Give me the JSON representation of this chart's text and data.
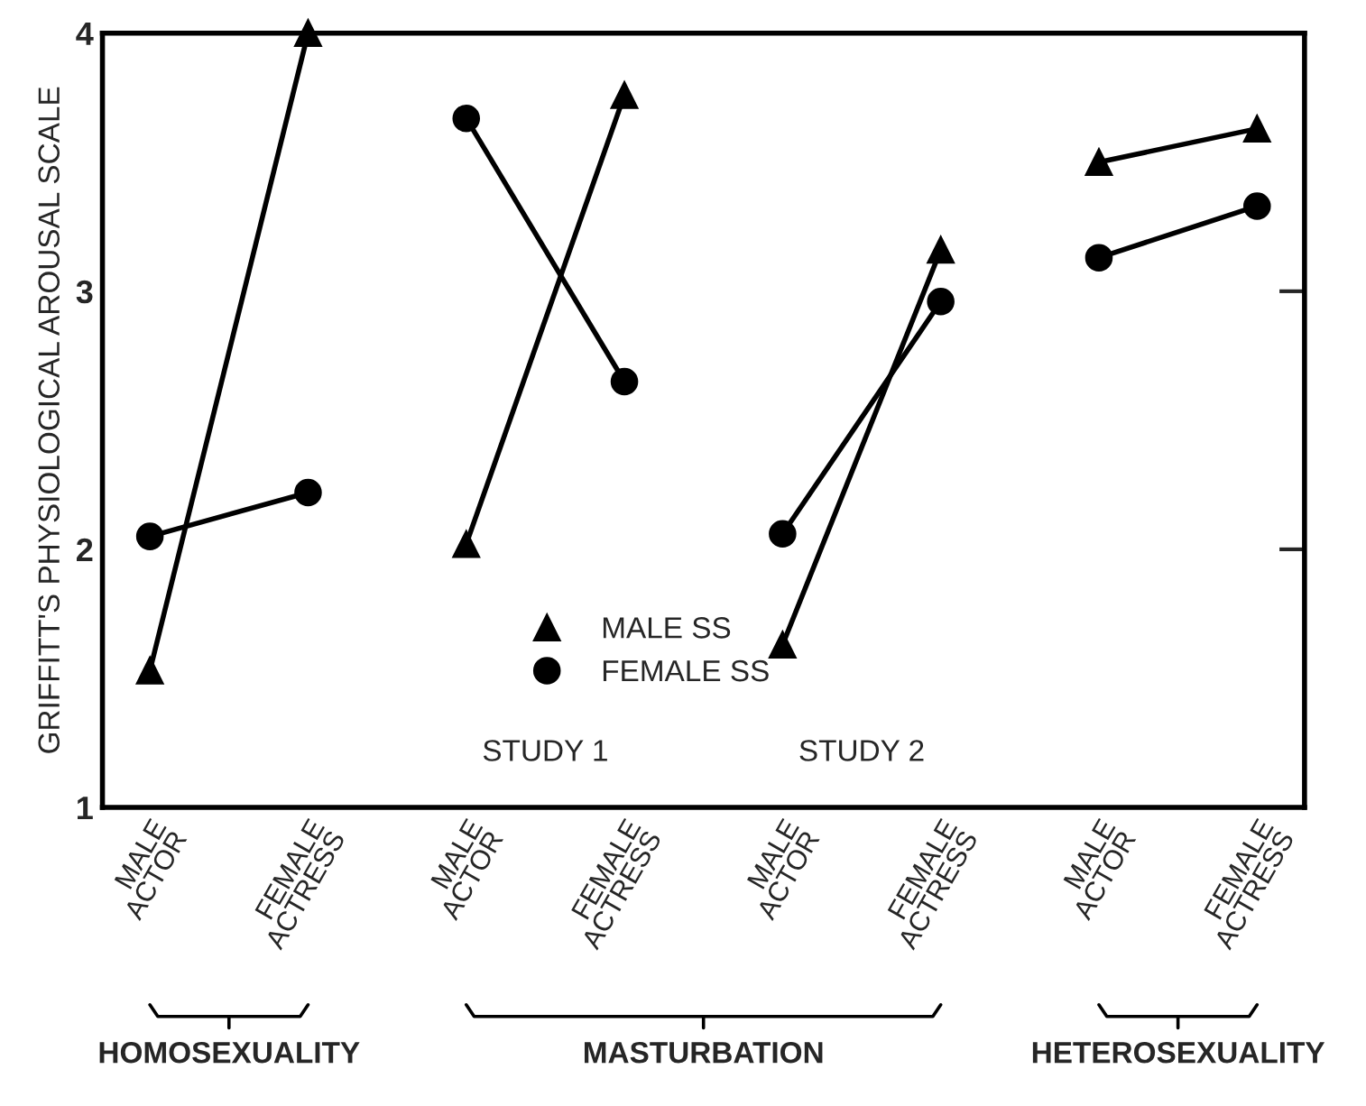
{
  "chart_data": {
    "type": "line",
    "ylabel": "GRIFFITT'S PHYSIOLOGICAL AROUSAL SCALE",
    "categories": [
      "MALE\nACTOR",
      "FEMALE\nACTRESS",
      "MALE\nACTOR",
      "FEMALE\nACTRESS",
      "MALE\nACTOR",
      "FEMALE\nACTRESS",
      "MALE\nACTOR",
      "FEMALE\nACTRESS"
    ],
    "ylim": [
      1,
      4
    ],
    "yticks": [
      1,
      2,
      3,
      4
    ],
    "grid": false,
    "legend": "bottom",
    "line_style": "solid",
    "series": [
      {
        "name": "MALE SS",
        "color": "#000000",
        "marker": "triangle",
        "values": [
          1.53,
          4.0,
          null,
          null,
          null,
          null,
          null,
          null
        ]
      },
      {
        "name": "FEMALE SS",
        "color": "#000000",
        "marker": "circle",
        "values": [
          2.05,
          2.22,
          null,
          null,
          null,
          null,
          null,
          null
        ]
      },
      {
        "color": "#000000",
        "marker": "triangle",
        "values": [
          null,
          null,
          2.02,
          3.76,
          null,
          null,
          null,
          null
        ]
      },
      {
        "color": "#000000",
        "marker": "circle",
        "values": [
          null,
          null,
          3.67,
          2.65,
          null,
          null,
          null,
          null
        ]
      },
      {
        "color": "#000000",
        "marker": "triangle",
        "values": [
          null,
          null,
          null,
          null,
          1.63,
          3.16,
          null,
          null
        ]
      },
      {
        "color": "#000000",
        "marker": "circle",
        "values": [
          null,
          null,
          null,
          null,
          2.06,
          2.96,
          null,
          null
        ]
      },
      {
        "color": "#000000",
        "marker": "triangle",
        "values": [
          null,
          null,
          null,
          null,
          null,
          null,
          3.5,
          3.63
        ]
      },
      {
        "color": "#000000",
        "marker": "circle",
        "values": [
          null,
          null,
          null,
          null,
          null,
          null,
          3.13,
          3.33
        ]
      }
    ],
    "annotations": [
      "STUDY 1",
      "STUDY 2",
      "HOMOSEXUALITY",
      "MASTURBATION",
      "HETEROSEXUALITY"
    ]
  }
}
